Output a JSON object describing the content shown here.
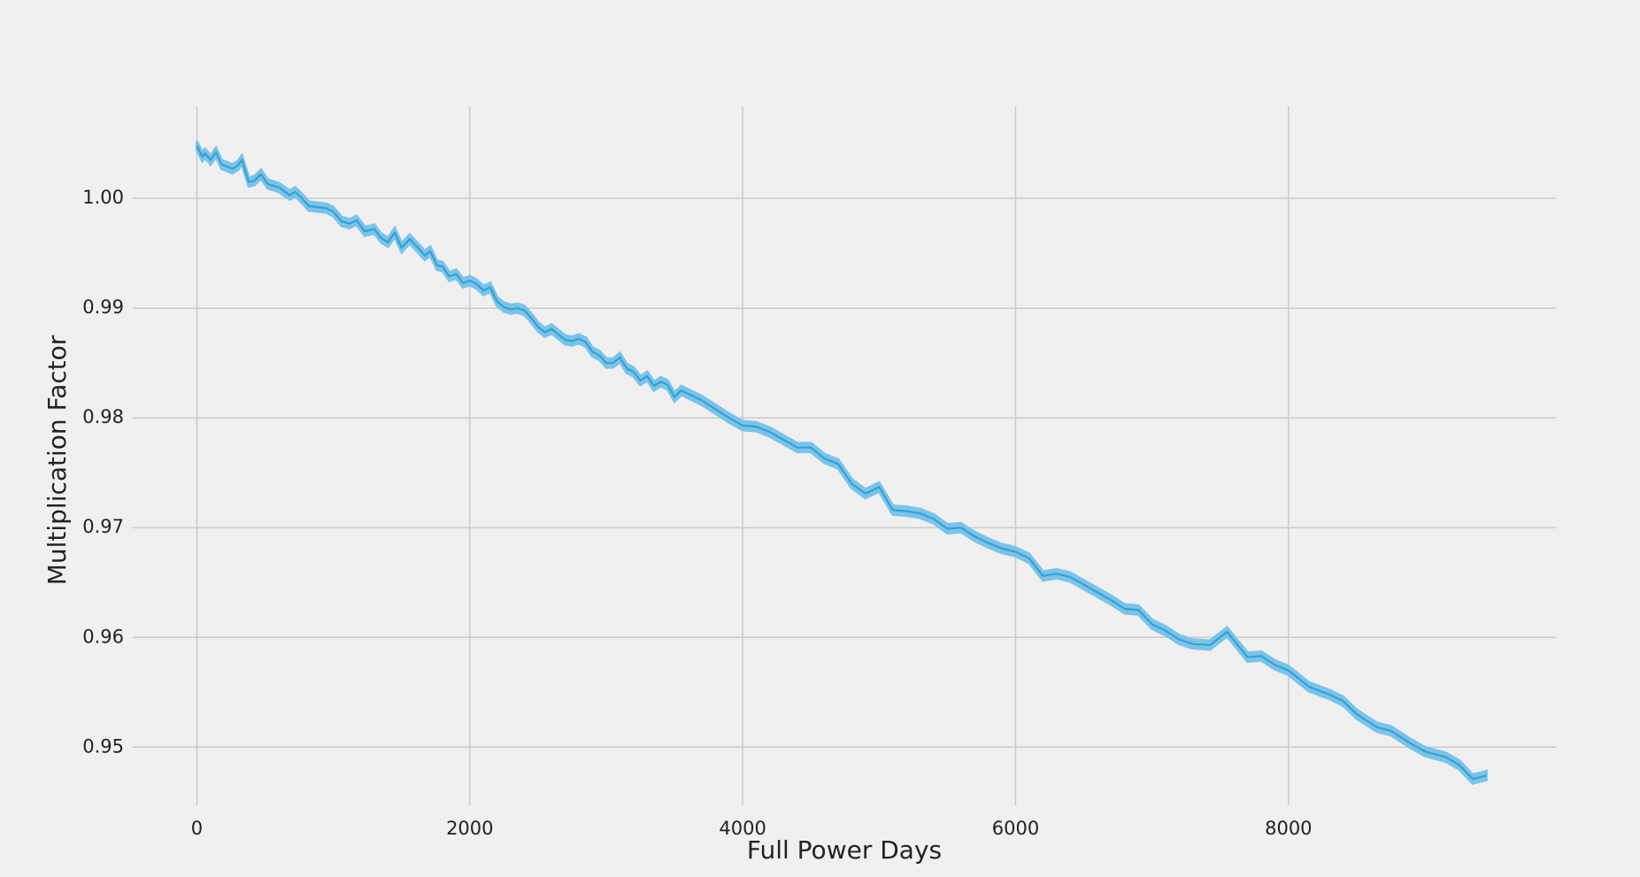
{
  "chart_data": {
    "type": "line",
    "x_label": "Full Power Days",
    "y_label": "Multiplication Factor",
    "x": [
      0,
      20,
      40,
      60,
      100,
      140,
      180,
      260,
      300,
      330,
      380,
      420,
      470,
      520,
      600,
      680,
      720,
      770,
      820,
      950,
      1000,
      1060,
      1120,
      1170,
      1230,
      1300,
      1350,
      1400,
      1450,
      1500,
      1560,
      1620,
      1670,
      1710,
      1760,
      1800,
      1850,
      1900,
      1950,
      2000,
      2050,
      2100,
      2150,
      2200,
      2250,
      2300,
      2350,
      2400,
      2450,
      2500,
      2550,
      2600,
      2650,
      2700,
      2750,
      2800,
      2850,
      2900,
      2950,
      3000,
      3050,
      3100,
      3150,
      3200,
      3250,
      3300,
      3350,
      3400,
      3450,
      3500,
      3550,
      3600,
      3700,
      3800,
      3900,
      4000,
      4100,
      4200,
      4300,
      4400,
      4500,
      4600,
      4700,
      4800,
      4900,
      5000,
      5100,
      5200,
      5300,
      5400,
      5500,
      5600,
      5700,
      5800,
      5900,
      6000,
      6100,
      6200,
      6300,
      6400,
      6500,
      6600,
      6700,
      6800,
      6900,
      7000,
      7100,
      7200,
      7300,
      7425,
      7550,
      7700,
      7800,
      7900,
      8000,
      8150,
      8300,
      8400,
      8500,
      8650,
      8750,
      8900,
      9000,
      9150,
      9250,
      9350,
      9450
    ],
    "values": [
      1.0048,
      1.0043,
      1.0038,
      1.0041,
      1.0035,
      1.0042,
      1.0031,
      1.0027,
      1.003,
      1.0035,
      1.0015,
      1.0016,
      1.0022,
      1.0013,
      1.001,
      1.0003,
      1.0006,
      1.0,
      0.9993,
      0.9991,
      0.9988,
      0.9979,
      0.9977,
      0.998,
      0.997,
      0.9972,
      0.9964,
      0.996,
      0.9969,
      0.9955,
      0.9963,
      0.9955,
      0.9948,
      0.9952,
      0.9939,
      0.9938,
      0.9929,
      0.9931,
      0.9923,
      0.9925,
      0.9922,
      0.9916,
      0.9919,
      0.9906,
      0.9901,
      0.9899,
      0.99,
      0.9898,
      0.9891,
      0.9883,
      0.9878,
      0.9881,
      0.9876,
      0.9871,
      0.987,
      0.9872,
      0.9869,
      0.986,
      0.9857,
      0.985,
      0.985,
      0.9855,
      0.9845,
      0.9842,
      0.9834,
      0.9838,
      0.9829,
      0.9833,
      0.983,
      0.9819,
      0.9825,
      0.9822,
      0.9816,
      0.9808,
      0.98,
      0.9793,
      0.9792,
      0.9787,
      0.978,
      0.9773,
      0.9773,
      0.9763,
      0.9758,
      0.974,
      0.9731,
      0.9737,
      0.9716,
      0.9715,
      0.9713,
      0.9708,
      0.9699,
      0.97,
      0.9692,
      0.9686,
      0.9681,
      0.9678,
      0.9672,
      0.9656,
      0.9658,
      0.9655,
      0.9648,
      0.9641,
      0.9634,
      0.9626,
      0.9625,
      0.9612,
      0.9606,
      0.9598,
      0.9594,
      0.9593,
      0.9605,
      0.9582,
      0.9583,
      0.9575,
      0.957,
      0.9555,
      0.9548,
      0.9542,
      0.953,
      0.9518,
      0.9515,
      0.9503,
      0.9496,
      0.9491,
      0.9484,
      0.9471,
      0.9474
    ],
    "uncertainty": 0.0004,
    "color": "#30a2da",
    "band_color": "#7cc3e8",
    "xlim": [
      -470,
      9960
    ],
    "ylim": [
      0.9447,
      1.0084
    ],
    "xticks": [
      0,
      2000,
      4000,
      6000,
      8000
    ],
    "yticks": [
      {
        "value": 1,
        "label": "1.00"
      },
      0.99,
      0.98,
      0.97,
      0.96,
      0.95
    ],
    "grid": true
  }
}
